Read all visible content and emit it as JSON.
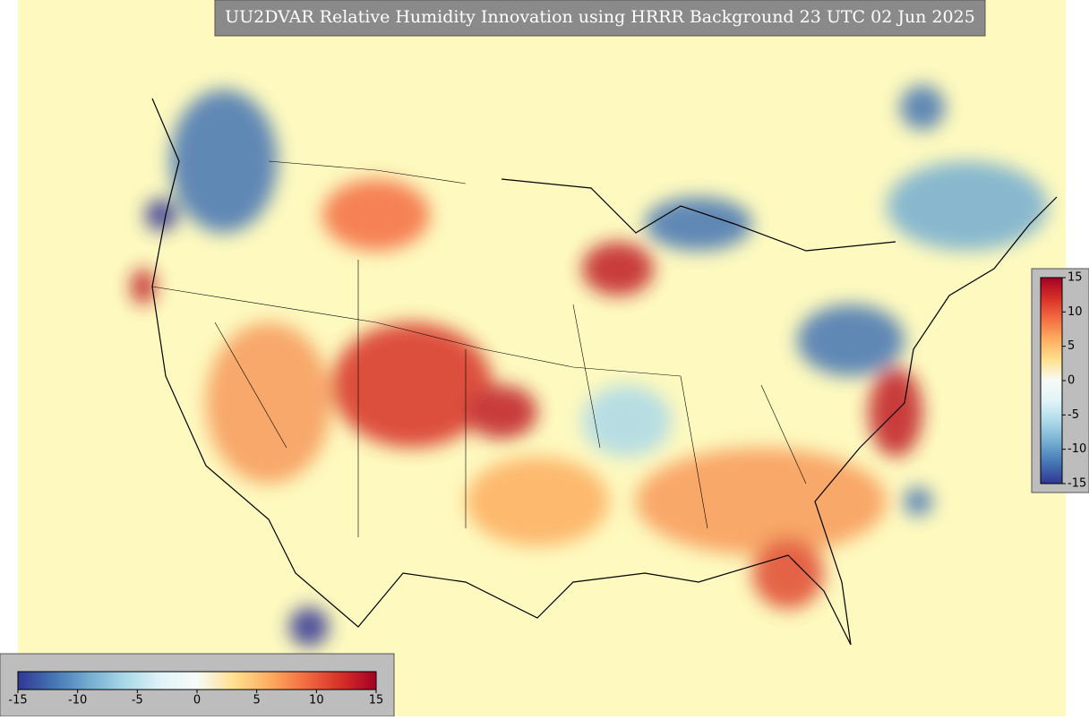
{
  "title": "UU2DVAR Relative Humidity Innovation using HRRR Background 23 UTC 02 Jun 2025",
  "colorbar": {
    "lim": [
      -15,
      15
    ],
    "ticks": [
      -15,
      -10,
      -5,
      0,
      5,
      10,
      15
    ],
    "colors": [
      "#313695",
      "#4575b4",
      "#74add1",
      "#abd9e9",
      "#e0f3f8",
      "#f7fbf7",
      "#fee090",
      "#fdae61",
      "#f46d43",
      "#d73027",
      "#a50026"
    ]
  }
}
